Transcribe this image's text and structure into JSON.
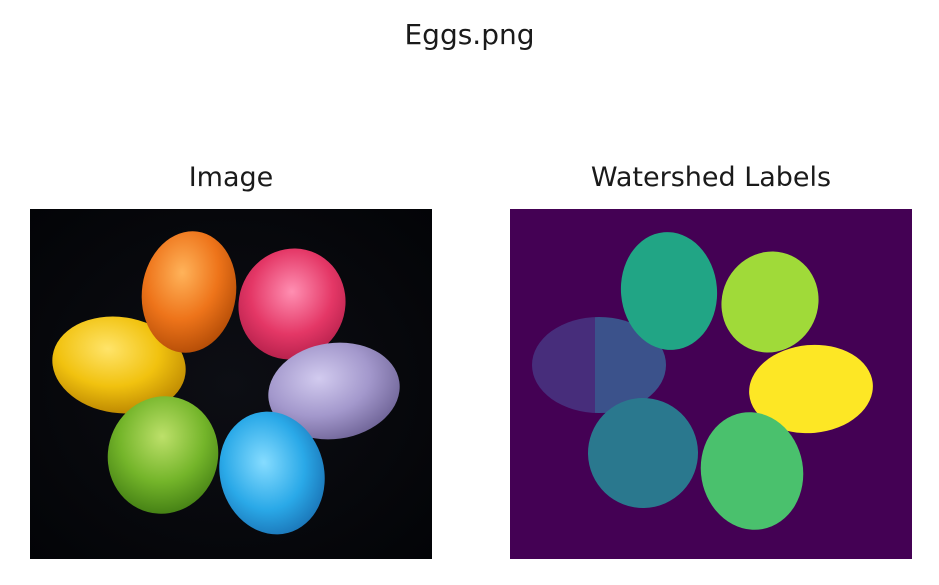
{
  "figure": {
    "suptitle": "Eggs.png",
    "panels": [
      {
        "title": "Image",
        "content": "photo of seven colored eggs on black background"
      },
      {
        "title": "Watershed Labels",
        "content": "label map"
      }
    ]
  },
  "colors": {
    "photo_background": "#05060a",
    "label_background": "#440154",
    "eggs_photo": [
      "#f6c21a",
      "#f07a1e",
      "#e83a6c",
      "#a89bcf",
      "#31b1ec",
      "#7fbf2e"
    ],
    "eggs_labels": [
      "#472d7b",
      "#3b528b",
      "#21a585",
      "#a0da39",
      "#fde725",
      "#4ac16d",
      "#2a788e",
      "#287c8e"
    ]
  }
}
